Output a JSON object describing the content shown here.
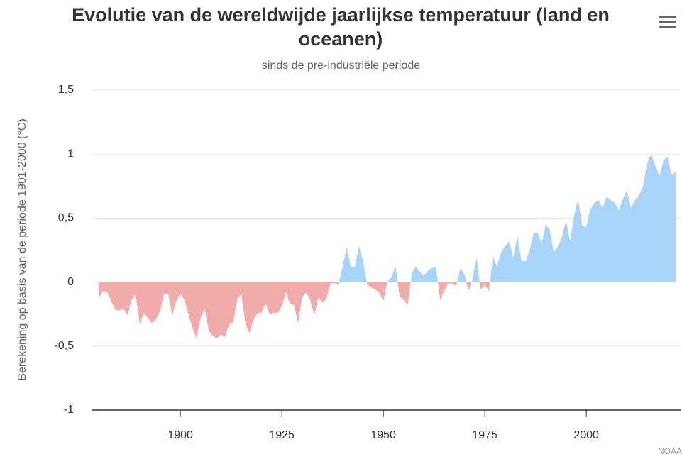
{
  "chart_data": {
    "type": "area",
    "title": "Evolutie van de wereldwijde jaarlijkse temperatuur (land en oceanen)",
    "subtitle": "sinds de pre-industriële periode",
    "y_axis_label": "Berekening op basis van de periode 1901-2000 (°C)",
    "credits": "NOAA",
    "color": "#a9d4f9",
    "negative_color": "#f2abab",
    "grid": true,
    "xlim": [
      1878.3,
      2023.4
    ],
    "xticks": [
      1900,
      1925,
      1950,
      1975,
      2000
    ],
    "ylim": [
      -1,
      1.5
    ],
    "yticks": [
      -1,
      {
        "value": -0.5,
        "label": "-0,5"
      },
      0,
      {
        "value": 0.5,
        "label": "0,5"
      },
      1,
      {
        "value": 1.5,
        "label": "1,5"
      }
    ],
    "x": [
      1880,
      1881,
      1882,
      1883,
      1884,
      1885,
      1886,
      1887,
      1888,
      1889,
      1890,
      1891,
      1892,
      1893,
      1894,
      1895,
      1896,
      1897,
      1898,
      1899,
      1900,
      1901,
      1902,
      1903,
      1904,
      1905,
      1906,
      1907,
      1908,
      1909,
      1910,
      1911,
      1912,
      1913,
      1914,
      1915,
      1916,
      1917,
      1918,
      1919,
      1920,
      1921,
      1922,
      1923,
      1924,
      1925,
      1926,
      1927,
      1928,
      1929,
      1930,
      1931,
      1932,
      1933,
      1934,
      1935,
      1936,
      1937,
      1938,
      1939,
      1940,
      1941,
      1942,
      1943,
      1944,
      1945,
      1946,
      1947,
      1948,
      1949,
      1950,
      1951,
      1952,
      1953,
      1954,
      1955,
      1956,
      1957,
      1958,
      1959,
      1960,
      1961,
      1962,
      1963,
      1964,
      1965,
      1966,
      1967,
      1968,
      1969,
      1970,
      1971,
      1972,
      1973,
      1974,
      1975,
      1976,
      1977,
      1978,
      1979,
      1980,
      1981,
      1982,
      1983,
      1984,
      1985,
      1986,
      1987,
      1988,
      1989,
      1990,
      1991,
      1992,
      1993,
      1994,
      1995,
      1996,
      1997,
      1998,
      1999,
      2000,
      2001,
      2002,
      2003,
      2004,
      2005,
      2006,
      2007,
      2008,
      2009,
      2010,
      2011,
      2012,
      2013,
      2014,
      2015,
      2016,
      2017,
      2018,
      2019,
      2020,
      2021,
      2022
    ],
    "values": [
      -0.12,
      -0.07,
      -0.08,
      -0.15,
      -0.22,
      -0.22,
      -0.21,
      -0.26,
      -0.14,
      -0.1,
      -0.33,
      -0.24,
      -0.28,
      -0.32,
      -0.29,
      -0.23,
      -0.09,
      -0.09,
      -0.26,
      -0.15,
      -0.09,
      -0.14,
      -0.25,
      -0.36,
      -0.44,
      -0.28,
      -0.21,
      -0.38,
      -0.42,
      -0.44,
      -0.41,
      -0.43,
      -0.33,
      -0.32,
      -0.14,
      -0.09,
      -0.32,
      -0.4,
      -0.3,
      -0.24,
      -0.24,
      -0.17,
      -0.25,
      -0.24,
      -0.24,
      -0.19,
      -0.08,
      -0.17,
      -0.18,
      -0.32,
      -0.12,
      -0.08,
      -0.14,
      -0.26,
      -0.12,
      -0.16,
      -0.13,
      -0.01,
      -0.01,
      -0.02,
      0.13,
      0.27,
      0.12,
      0.12,
      0.28,
      0.17,
      -0.02,
      -0.04,
      -0.06,
      -0.08,
      -0.15,
      0.0,
      0.04,
      0.13,
      -0.11,
      -0.14,
      -0.18,
      0.07,
      0.12,
      0.08,
      0.05,
      0.09,
      0.11,
      0.12,
      -0.14,
      -0.07,
      -0.01,
      -0.01,
      -0.03,
      0.11,
      0.06,
      -0.07,
      0.03,
      0.19,
      -0.06,
      -0.02,
      -0.07,
      0.2,
      0.12,
      0.23,
      0.28,
      0.32,
      0.19,
      0.36,
      0.17,
      0.16,
      0.24,
      0.38,
      0.39,
      0.3,
      0.45,
      0.41,
      0.23,
      0.28,
      0.35,
      0.48,
      0.32,
      0.52,
      0.65,
      0.44,
      0.43,
      0.57,
      0.62,
      0.64,
      0.58,
      0.67,
      0.64,
      0.62,
      0.56,
      0.65,
      0.72,
      0.58,
      0.64,
      0.68,
      0.75,
      0.93,
      1.0,
      0.91,
      0.83,
      0.95,
      0.98,
      0.84,
      0.86
    ]
  }
}
